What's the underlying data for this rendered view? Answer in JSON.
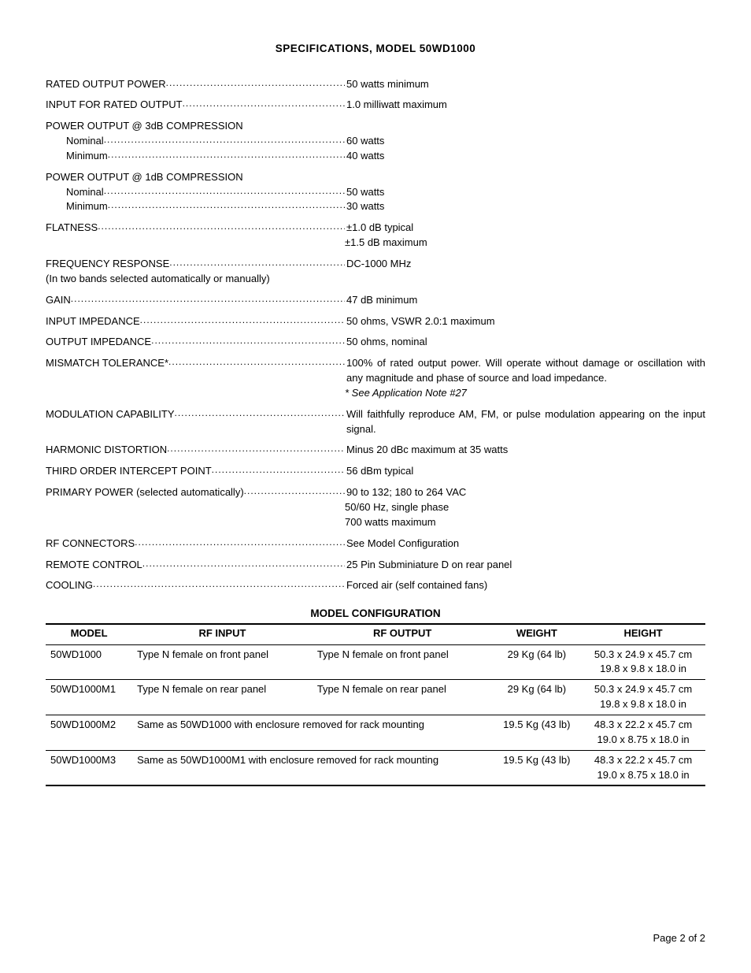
{
  "title": "SPECIFICATIONS, MODEL 50WD1000",
  "specs": {
    "rated_output_power": {
      "label": "RATED OUTPUT POWER",
      "value": "50 watts minimum"
    },
    "input_for_rated_output": {
      "label": "INPUT FOR RATED OUTPUT",
      "value": "1.0 milliwatt maximum"
    },
    "po_3db": {
      "header": "POWER OUTPUT @ 3dB COMPRESSION",
      "nominal_label": "Nominal",
      "nominal_value": "60 watts",
      "minimum_label": "Minimum",
      "minimum_value": "40 watts"
    },
    "po_1db": {
      "header": "POWER OUTPUT @ 1dB COMPRESSION",
      "nominal_label": "Nominal",
      "nominal_value": "50 watts",
      "minimum_label": "Minimum",
      "minimum_value": "30 watts"
    },
    "flatness": {
      "label": "FLATNESS",
      "value": "±1.0 dB typical",
      "cont": "±1.5 dB maximum"
    },
    "freq_response": {
      "label": "FREQUENCY RESPONSE",
      "value": "DC-1000 MHz",
      "note": "(In two bands selected automatically or manually)"
    },
    "gain": {
      "label": "GAIN",
      "value": "47 dB minimum"
    },
    "input_impedance": {
      "label": "INPUT IMPEDANCE",
      "value": "50 ohms, VSWR 2.0:1 maximum"
    },
    "output_impedance": {
      "label": "OUTPUT IMPEDANCE",
      "value": "50 ohms, nominal"
    },
    "mismatch": {
      "label": "MISMATCH TOLERANCE*",
      "value": "100% of rated output power. Will operate without damage or oscillation with any magnitude and phase of source and load impedance.",
      "note_italic": "* See Application Note #27"
    },
    "modulation": {
      "label": "MODULATION CAPABILITY",
      "value": "Will faithfully reproduce AM, FM, or pulse modulation appearing on the input signal."
    },
    "harmonic": {
      "label": "HARMONIC DISTORTION",
      "value": "Minus 20 dBc maximum at 35 watts"
    },
    "toip": {
      "label": "THIRD ORDER INTERCEPT POINT",
      "value": "56 dBm typical"
    },
    "primary_power": {
      "label": "PRIMARY POWER (selected automatically)",
      "value": "90 to 132; 180 to 264 VAC",
      "cont1": "50/60 Hz, single phase",
      "cont2": "700 watts maximum"
    },
    "rf_connectors": {
      "label": "RF CONNECTORS",
      "value": "See Model Configuration"
    },
    "remote": {
      "label": "REMOTE CONTROL",
      "value": "25 Pin Subminiature D on rear panel"
    },
    "cooling": {
      "label": "COOLING",
      "value": "Forced air (self contained fans)"
    }
  },
  "table": {
    "title": "MODEL CONFIGURATION",
    "columns": {
      "model": "MODEL",
      "rf_input": "RF INPUT",
      "rf_output": "RF OUTPUT",
      "weight": "WEIGHT",
      "height": "HEIGHT"
    },
    "rows": [
      {
        "model": "50WD1000",
        "rf_input": "Type N female on front panel",
        "rf_output": "Type N female on front panel",
        "weight": "29 Kg (64 lb)",
        "height1": "50.3 x 24.9 x 45.7 cm",
        "height2": "19.8 x 9.8 x 18.0 in"
      },
      {
        "model": "50WD1000M1",
        "rf_input": "Type N female on rear panel",
        "rf_output": "Type N female on rear panel",
        "weight": "29 Kg (64 lb)",
        "height1": "50.3 x 24.9 x 45.7 cm",
        "height2": "19.8 x 9.8 x 18.0 in"
      },
      {
        "model": "50WD1000M2",
        "span": "Same as 50WD1000 with enclosure removed for rack mounting",
        "weight": "19.5 Kg (43 lb)",
        "height1": "48.3 x 22.2 x 45.7 cm",
        "height2": "19.0 x 8.75 x 18.0 in"
      },
      {
        "model": "50WD1000M3",
        "span": "Same as 50WD1000M1 with enclosure removed for rack mounting",
        "weight": "19.5 Kg (43 lb)",
        "height1": "48.3 x 22.2 x 45.7 cm",
        "height2": "19.0 x 8.75 x 18.0 in"
      }
    ]
  },
  "footer": "Page 2 of 2"
}
